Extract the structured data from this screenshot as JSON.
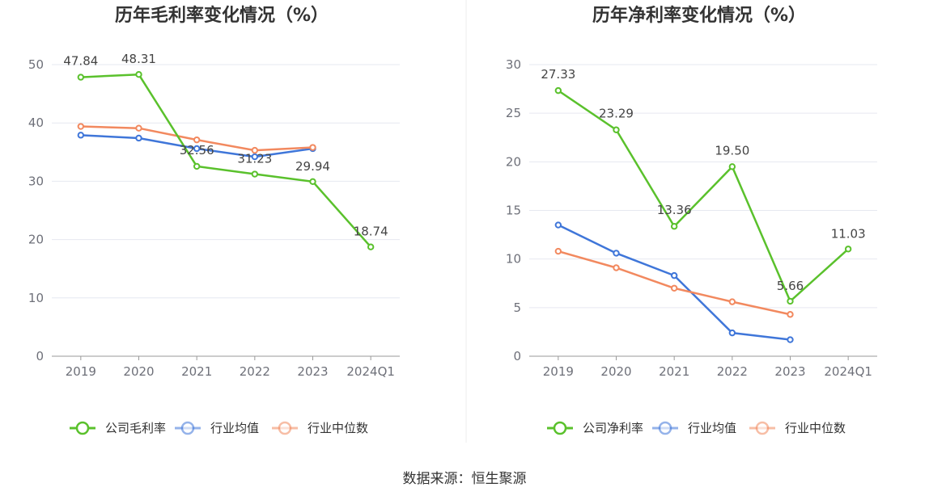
{
  "source": "数据来源：恒生聚源",
  "colors": {
    "company": "#5ac12c",
    "industry_avg": "#3f76d9",
    "industry_median": "#f2895f",
    "grid": "#e6e8f0",
    "axis": "#9a9a9a"
  },
  "chart_data": [
    {
      "type": "line",
      "title": "历年毛利率变化情况（%）",
      "categories": [
        "2019",
        "2020",
        "2021",
        "2022",
        "2023",
        "2024Q1"
      ],
      "ylim": [
        0,
        50
      ],
      "yticks": [
        0,
        10,
        20,
        30,
        40,
        50
      ],
      "grid": true,
      "legend_position": "bottom",
      "series": [
        {
          "name": "公司毛利率",
          "color": "#5ac12c",
          "values": [
            47.84,
            48.31,
            32.56,
            31.23,
            29.94,
            18.74
          ],
          "labels": [
            "47.84",
            "48.31",
            "32.56",
            "31.23",
            "29.94",
            "18.74"
          ]
        },
        {
          "name": "行业均值",
          "color": "#3f76d9",
          "values": [
            37.9,
            37.4,
            35.6,
            34.2,
            35.6,
            null
          ]
        },
        {
          "name": "行业中位数",
          "color": "#f2895f",
          "values": [
            39.4,
            39.1,
            37.1,
            35.3,
            35.8,
            null
          ]
        }
      ]
    },
    {
      "type": "line",
      "title": "历年净利率变化情况（%）",
      "categories": [
        "2019",
        "2020",
        "2021",
        "2022",
        "2023",
        "2024Q1"
      ],
      "ylim": [
        0,
        30
      ],
      "yticks": [
        0,
        5,
        10,
        15,
        20,
        25,
        30
      ],
      "grid": true,
      "legend_position": "bottom",
      "series": [
        {
          "name": "公司净利率",
          "color": "#5ac12c",
          "values": [
            27.33,
            23.29,
            13.36,
            19.5,
            5.66,
            11.03
          ],
          "labels": [
            "27.33",
            "23.29",
            "13.36",
            "19.50",
            "5.66",
            "11.03"
          ]
        },
        {
          "name": "行业均值",
          "color": "#3f76d9",
          "values": [
            13.5,
            10.6,
            8.3,
            2.4,
            1.7,
            null
          ]
        },
        {
          "name": "行业中位数",
          "color": "#f2895f",
          "values": [
            10.8,
            9.1,
            7.0,
            5.6,
            4.3,
            null
          ]
        }
      ]
    }
  ]
}
